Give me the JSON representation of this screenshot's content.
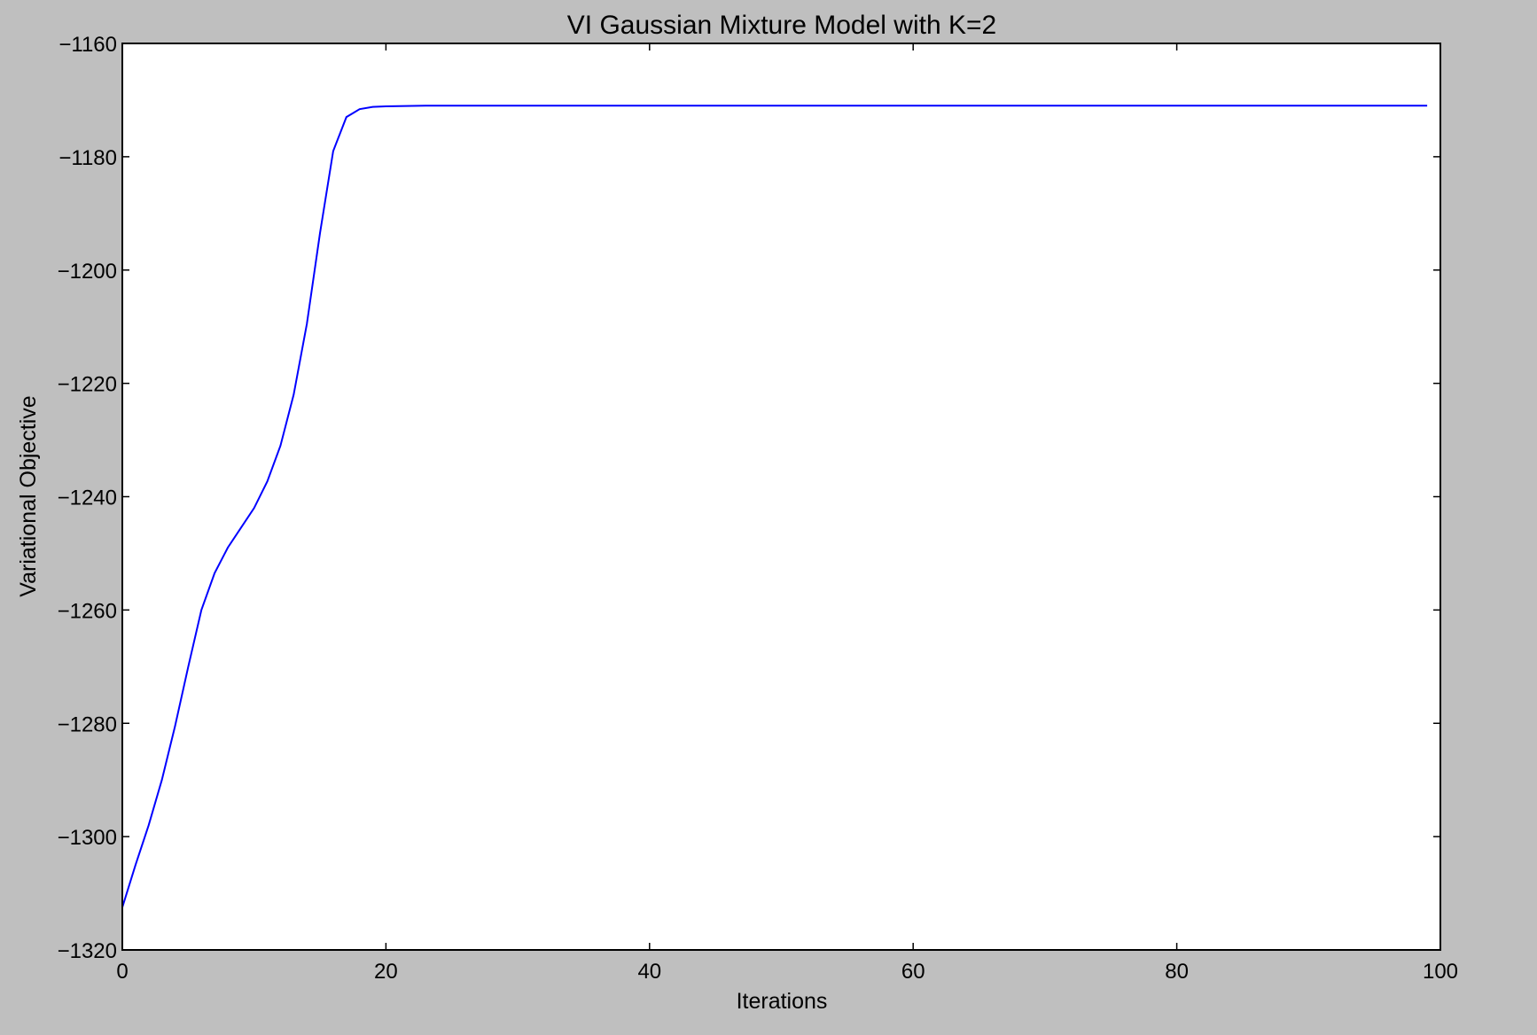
{
  "chart_data": {
    "type": "line",
    "title": "VI Gaussian Mixture Model with K=2",
    "xlabel": "Iterations",
    "ylabel": "Variational Objective",
    "xlim": [
      0,
      100
    ],
    "ylim": [
      -1320,
      -1160
    ],
    "xticks": [
      0,
      20,
      40,
      60,
      80,
      100
    ],
    "yticks": [
      -1320,
      -1300,
      -1280,
      -1260,
      -1240,
      -1220,
      -1200,
      -1180,
      -1160
    ],
    "xtick_labels": [
      "0",
      "20",
      "40",
      "60",
      "80",
      "100"
    ],
    "ytick_labels": [
      "−1320",
      "−1300",
      "−1280",
      "−1260",
      "−1240",
      "−1220",
      "−1200",
      "−1180",
      "−1160"
    ],
    "grid": false,
    "legend": "none",
    "colors": {
      "background": "#bfbfbf",
      "plot_area": "#ffffff",
      "line": "#0000ff"
    },
    "series": [
      {
        "x": [
          0,
          1,
          2,
          3,
          4,
          5,
          6,
          7,
          8,
          9,
          10,
          11,
          12,
          13,
          14,
          15,
          16,
          17,
          18,
          19,
          20,
          21,
          22,
          23,
          24,
          25,
          30,
          40,
          50,
          60,
          70,
          80,
          90,
          99
        ],
        "values": [
          -1312.5,
          -1305.0,
          -1298.0,
          -1290.0,
          -1280.5,
          -1270.0,
          -1260.0,
          -1253.5,
          -1249.0,
          -1245.5,
          -1242.0,
          -1237.3,
          -1231.0,
          -1222.0,
          -1209.5,
          -1193.5,
          -1179.0,
          -1173.0,
          -1171.6,
          -1171.2,
          -1171.1,
          -1171.05,
          -1171.02,
          -1171.0,
          -1171.0,
          -1171.0,
          -1171.0,
          -1171.0,
          -1171.0,
          -1171.0,
          -1171.0,
          -1171.0,
          -1171.0,
          -1171.0
        ]
      }
    ]
  }
}
